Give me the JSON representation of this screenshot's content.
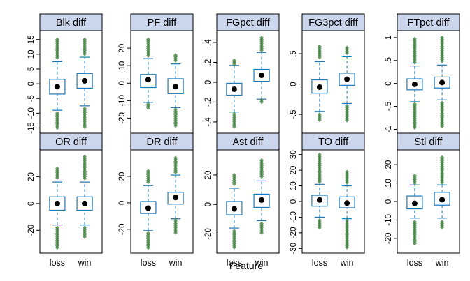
{
  "chart_data": {
    "type": "box",
    "xlabel": "Feature",
    "ylabel": "",
    "categories": [
      "loss",
      "win"
    ],
    "colors": {
      "strip_fill": "#ccd6ec",
      "box_stroke": "#1f77b4",
      "whisker": "#1f77b4",
      "outlier": "#3a7d3a",
      "median": "#000000"
    },
    "panels": [
      {
        "title": "Blk_diff",
        "ylim": [
          -17,
          18
        ],
        "ticks": [
          -15,
          -10,
          -5,
          0,
          5,
          10,
          15
        ],
        "groups": [
          {
            "name": "loss",
            "whisker_low": -9,
            "q1": -3.5,
            "median": -1,
            "q3": 1.5,
            "whisker_high": 7.5,
            "outlier_low": [
              -15.5,
              -10
            ],
            "outlier_high": [
              8.5,
              15
            ]
          },
          {
            "name": "win",
            "whisker_low": -7.5,
            "q1": -1.5,
            "median": 1,
            "q3": 3.5,
            "whisker_high": 9,
            "outlier_low": [
              -15,
              -8.5
            ],
            "outlier_high": [
              10,
              15
            ]
          }
        ]
      },
      {
        "title": "PF_diff",
        "ylim": [
          -29,
          30
        ],
        "ticks": [
          -20,
          -10,
          0,
          10,
          20
        ],
        "groups": [
          {
            "name": "loss",
            "whisker_low": -11,
            "q1": -2.5,
            "median": 2,
            "q3": 5,
            "whisker_high": 14,
            "outlier_low": [
              -15,
              -12
            ],
            "outlier_high": [
              15,
              25
            ]
          },
          {
            "name": "win",
            "whisker_low": -14,
            "q1": -6,
            "median": -2,
            "q3": 2.5,
            "whisker_high": 11,
            "outlier_low": [
              -25,
              -15
            ],
            "outlier_high": [
              12,
              16
            ]
          }
        ]
      },
      {
        "title": "FGpct_diff",
        "ylim": [
          -0.52,
          0.52
        ],
        "ticks": [
          -0.4,
          -0.2,
          0,
          0.2,
          0.4
        ],
        "groups": [
          {
            "name": "loss",
            "whisker_low": -0.3,
            "q1": -0.13,
            "median": -0.07,
            "q3": -0.01,
            "whisker_high": 0.17,
            "outlier_low": [
              -0.45,
              -0.32
            ],
            "outlier_high": [
              0.18,
              0.22
            ]
          },
          {
            "name": "win",
            "whisker_low": -0.17,
            "q1": 0.01,
            "median": 0.07,
            "q3": 0.13,
            "whisker_high": 0.3,
            "outlier_low": [
              -0.21,
              -0.18
            ],
            "outlier_high": [
              0.32,
              0.45
            ]
          }
        ]
      },
      {
        "title": "FG3pct_diff",
        "ylim": [
          -0.82,
          0.88
        ],
        "ticks": [
          -0.5,
          0,
          0.5
        ],
        "groups": [
          {
            "name": "loss",
            "whisker_low": -0.45,
            "q1": -0.15,
            "median": -0.05,
            "q3": 0.07,
            "whisker_high": 0.37,
            "outlier_low": [
              -0.6,
              -0.5
            ],
            "outlier_high": [
              0.42,
              0.62
            ]
          },
          {
            "name": "win",
            "whisker_low": -0.32,
            "q1": -0.02,
            "median": 0.08,
            "q3": 0.18,
            "whisker_high": 0.45,
            "outlier_low": [
              -0.6,
              -0.36
            ],
            "outlier_high": [
              0.5,
              0.6
            ]
          }
        ]
      },
      {
        "title": "FTpct_diff",
        "ylim": [
          -1.1,
          1.15
        ],
        "ticks": [
          -1.0,
          -0.5,
          0,
          0.5,
          1.0
        ],
        "groups": [
          {
            "name": "loss",
            "whisker_low": -0.4,
            "q1": -0.14,
            "median": -0.02,
            "q3": 0.1,
            "whisker_high": 0.38,
            "outlier_low": [
              -1.0,
              -0.45
            ],
            "outlier_high": [
              0.45,
              0.97
            ]
          },
          {
            "name": "win",
            "whisker_low": -0.36,
            "q1": -0.1,
            "median": 0.02,
            "q3": 0.14,
            "whisker_high": 0.4,
            "outlier_low": [
              -0.95,
              -0.42
            ],
            "outlier_high": [
              0.47,
              1.0
            ]
          }
        ]
      },
      {
        "title": "OR_diff",
        "ylim": [
          -37,
          40
        ],
        "ticks": [
          -20,
          0,
          20
        ],
        "groups": [
          {
            "name": "loss",
            "whisker_low": -16,
            "q1": -5,
            "median": 0,
            "q3": 5,
            "whisker_high": 16,
            "outlier_low": [
              -33,
              -18
            ],
            "outlier_high": [
              18,
              26
            ]
          },
          {
            "name": "win",
            "whisker_low": -16,
            "q1": -5,
            "median": 0,
            "q3": 5,
            "whisker_high": 16,
            "outlier_low": [
              -26,
              -18
            ],
            "outlier_high": [
              18,
              35
            ]
          }
        ]
      },
      {
        "title": "DR_diff",
        "ylim": [
          -38,
          40
        ],
        "ticks": [
          -20,
          0,
          20
        ],
        "groups": [
          {
            "name": "loss",
            "whisker_low": -21,
            "q1": -8,
            "median": -4,
            "q3": 1,
            "whisker_high": 13,
            "outlier_low": [
              -34,
              -23
            ],
            "outlier_high": [
              15,
              24
            ]
          },
          {
            "name": "win",
            "whisker_low": -12,
            "q1": -1,
            "median": 4,
            "q3": 8,
            "whisker_high": 21,
            "outlier_low": [
              -23,
              -13
            ],
            "outlier_high": [
              23,
              34
            ]
          }
        ]
      },
      {
        "title": "Ast_diff",
        "ylim": [
          -33,
          37
        ],
        "ticks": [
          -20,
          0,
          20
        ],
        "groups": [
          {
            "name": "loss",
            "whisker_low": -16,
            "q1": -7,
            "median": -3,
            "q3": 2,
            "whisker_high": 11,
            "outlier_low": [
              -30,
              -18
            ],
            "outlier_high": [
              13,
              20
            ]
          },
          {
            "name": "win",
            "whisker_low": -11,
            "q1": -2,
            "median": 3,
            "q3": 7,
            "whisker_high": 16,
            "outlier_low": [
              -20,
              -13
            ],
            "outlier_high": [
              18,
              30
            ]
          }
        ]
      },
      {
        "title": "TO_diff",
        "ylim": [
          -33,
          33
        ],
        "ticks": [
          -30,
          -20,
          -10,
          0,
          10,
          20,
          30
        ],
        "groups": [
          {
            "name": "loss",
            "whisker_low": -10,
            "q1": -3,
            "median": 1,
            "q3": 4,
            "whisker_high": 11,
            "outlier_low": [
              -17,
              -12
            ],
            "outlier_high": [
              12,
              30
            ]
          },
          {
            "name": "win",
            "whisker_low": -11,
            "q1": -4,
            "median": -1,
            "q3": 3,
            "whisker_high": 10,
            "outlier_low": [
              -30,
              -12
            ],
            "outlier_high": [
              12,
              19
            ]
          }
        ]
      },
      {
        "title": "Stl_diff",
        "ylim": [
          -28,
          28
        ],
        "ticks": [
          -20,
          -10,
          0,
          10,
          20
        ],
        "groups": [
          {
            "name": "loss",
            "whisker_low": -9,
            "q1": -4,
            "median": -1,
            "q3": 3,
            "whisker_high": 9,
            "outlier_low": [
              -23,
              -11
            ],
            "outlier_high": [
              10,
              14
            ]
          },
          {
            "name": "win",
            "whisker_low": -9,
            "q1": -2,
            "median": 1,
            "q3": 5,
            "whisker_high": 9,
            "outlier_low": [
              -14,
              -11
            ],
            "outlier_high": [
              10,
              24
            ]
          }
        ]
      }
    ]
  }
}
